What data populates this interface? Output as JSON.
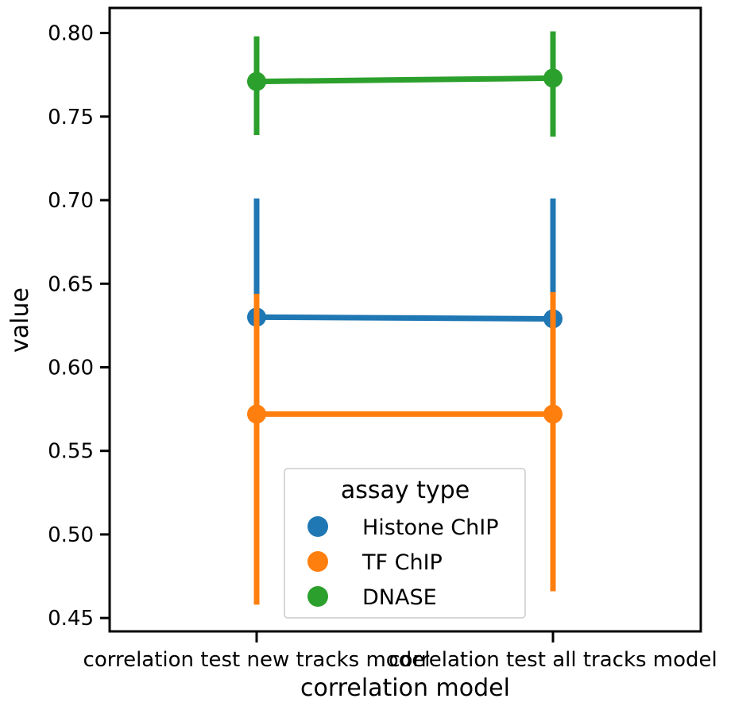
{
  "chart_data": {
    "type": "line",
    "title": "",
    "xlabel": "correlation model",
    "ylabel": "value",
    "categories": [
      "correlation test new tracks model",
      "correlation test all tracks model"
    ],
    "ylim": [
      0.442,
      0.815
    ],
    "yticks": [
      "0.45",
      "0.50",
      "0.55",
      "0.60",
      "0.65",
      "0.70",
      "0.75",
      "0.80"
    ],
    "ytick_values": [
      0.45,
      0.5,
      0.55,
      0.6,
      0.65,
      0.7,
      0.75,
      0.8
    ],
    "grid": false,
    "legend": {
      "title": "assay type",
      "placement": "lower-center"
    },
    "series": [
      {
        "name": "Histone ChIP",
        "color": "#1f77b4",
        "values": [
          0.63,
          0.629
        ],
        "ci_low": [
          0.56,
          0.555
        ],
        "ci_high": [
          0.701,
          0.701
        ]
      },
      {
        "name": "TF ChIP",
        "color": "#ff7f0e",
        "values": [
          0.572,
          0.572
        ],
        "ci_low": [
          0.458,
          0.466
        ],
        "ci_high": [
          0.644,
          0.645
        ]
      },
      {
        "name": "DNASE",
        "color": "#2ca02c",
        "values": [
          0.771,
          0.773
        ],
        "ci_low": [
          0.739,
          0.738
        ],
        "ci_high": [
          0.798,
          0.801
        ]
      }
    ]
  }
}
